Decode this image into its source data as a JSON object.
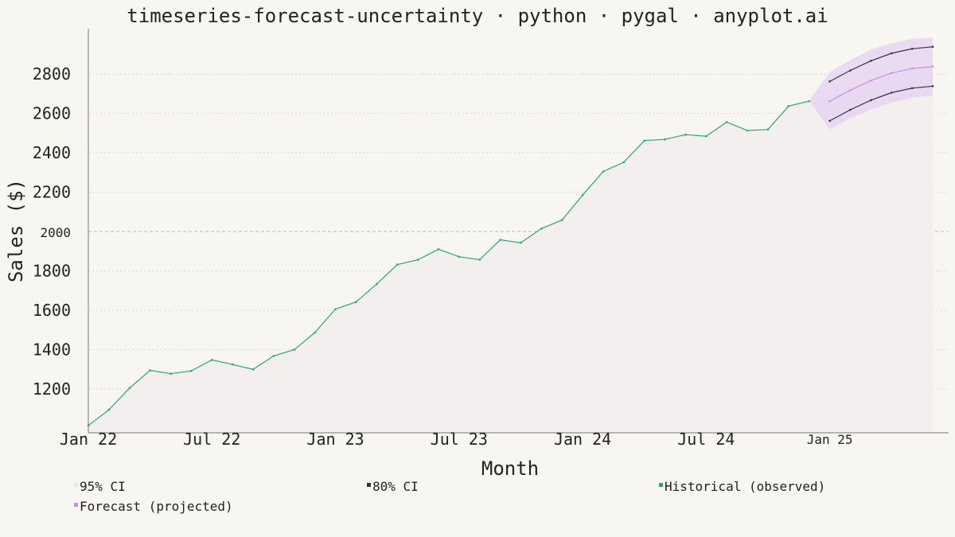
{
  "chart_data": {
    "type": "line",
    "title": "timeseries-forecast-uncertainty · python · pygal · anyplot.ai",
    "xlabel": "Month",
    "ylabel": "Sales ($)",
    "ylim": [
      1000,
      3000
    ],
    "y_ticks": [
      1200,
      1400,
      1600,
      1800,
      2000,
      2200,
      2400,
      2600,
      2800
    ],
    "x_tick_labels": [
      "Jan 22",
      "Jul 22",
      "Jan 23",
      "Jul 23",
      "Jan 24",
      "Jul 24",
      "Jan 25"
    ],
    "x_tick_index": [
      0,
      6,
      12,
      18,
      24,
      30,
      36
    ],
    "legend_position": "bottom",
    "grid": true,
    "colors": {
      "historical": "#2aa57f",
      "forecast": "#c88ff0",
      "ci80": "#333333",
      "ci95": "#e6d0f2",
      "area": "#f3efee"
    },
    "series": [
      {
        "name": "Historical (observed)",
        "start_index": 0,
        "values": [
          1015,
          1095,
          1205,
          1295,
          1278,
          1292,
          1348,
          1325,
          1300,
          1368,
          1400,
          1487,
          1606,
          1642,
          1733,
          1832,
          1856,
          1910,
          1872,
          1857,
          1958,
          1943,
          2015,
          2058,
          2185,
          2305,
          2352,
          2462,
          2468,
          2492,
          2484,
          2556,
          2513,
          2518,
          2637,
          2662
        ]
      },
      {
        "name": "Forecast (projected)",
        "start_index": 36,
        "values": [
          2662,
          2718,
          2767,
          2805,
          2828,
          2838
        ]
      },
      {
        "name": "80% CI",
        "start_index": 36,
        "upper": [
          2762,
          2818,
          2867,
          2905,
          2928,
          2938
        ],
        "lower": [
          2562,
          2618,
          2667,
          2705,
          2728,
          2738
        ]
      },
      {
        "name": "95% CI",
        "start_index": 35,
        "upper": [
          2665,
          2810,
          2870,
          2925,
          2955,
          2978,
          2985
        ],
        "lower": [
          2665,
          2518,
          2575,
          2620,
          2655,
          2680,
          2690
        ]
      }
    ],
    "legend": [
      {
        "label": "95% CI",
        "color": "#ede4ef"
      },
      {
        "label": "80% CI",
        "color": "#333333"
      },
      {
        "label": "Historical (observed)",
        "color": "#2aa57f"
      },
      {
        "label": "Forecast (projected)",
        "color": "#c88ff0"
      }
    ]
  }
}
